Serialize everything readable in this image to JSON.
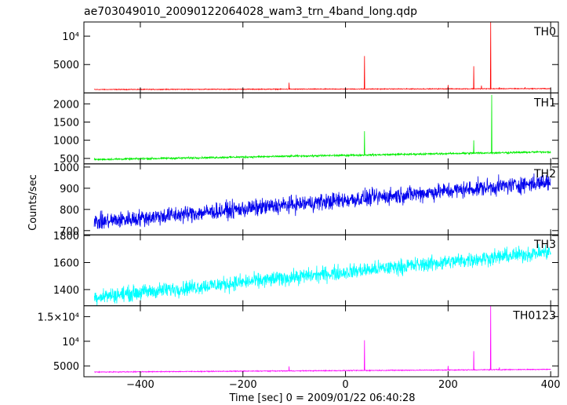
{
  "chart_data": {
    "type": "line",
    "title": "ae703049010_20090122064028_wam3_trn_4band_long.qdp",
    "xlabel": "Time [sec] 0 = 2009/01/22 06:40:28",
    "ylabel": "Counts/sec",
    "xlim": [
      -510,
      415
    ],
    "x_ticks": [
      -400,
      -200,
      0,
      200,
      400
    ],
    "x_tick_labels": [
      "−400",
      "−200",
      "0",
      "200",
      "400"
    ],
    "grid": false,
    "panels": [
      {
        "name": "TH0",
        "color": "#ff0000",
        "ylim": [
          0,
          12500
        ],
        "ticks": [
          5000,
          10000
        ],
        "tick_labels": [
          "5000",
          "10⁴"
        ],
        "baseline": {
          "x": [
            -490,
            400
          ],
          "y": [
            600,
            760
          ]
        },
        "noise": 45,
        "spikes": [
          [
            -110,
            1800
          ],
          [
            37,
            6500
          ],
          [
            200,
            1400
          ],
          [
            250,
            4700
          ],
          [
            265,
            1300
          ],
          [
            283,
            12500
          ],
          [
            300,
            1000
          ],
          [
            330,
            900
          ],
          [
            350,
            1000
          ],
          [
            390,
            700
          ]
        ]
      },
      {
        "name": "TH1",
        "color": "#00ee00",
        "ylim": [
          350,
          2300
        ],
        "ticks": [
          500,
          1000,
          1500,
          2000
        ],
        "tick_labels": [
          "500",
          "1000",
          "1500",
          "2000"
        ],
        "baseline": {
          "x": [
            -490,
            400
          ],
          "y": [
            470,
            680
          ]
        },
        "noise": 18,
        "spikes": [
          [
            37,
            1250
          ],
          [
            250,
            1000
          ],
          [
            285,
            2250
          ]
        ]
      },
      {
        "name": "TH2",
        "color": "#0000ee",
        "ylim": [
          680,
          1015
        ],
        "ticks": [
          700,
          800,
          900,
          1000
        ],
        "tick_labels": [
          "700",
          "800",
          "900",
          "1000"
        ],
        "baseline": {
          "x": [
            -490,
            400
          ],
          "y": [
            740,
            930
          ]
        },
        "noise": 28,
        "spikes": []
      },
      {
        "name": "TH3",
        "color": "#00ffff",
        "ylim": [
          1280,
          1805
        ],
        "ticks": [
          1400,
          1600,
          1800
        ],
        "tick_labels": [
          "1400",
          "1600",
          "1800"
        ],
        "baseline": {
          "x": [
            -490,
            400
          ],
          "y": [
            1345,
            1680
          ]
        },
        "noise": 40,
        "spikes": []
      },
      {
        "name": "TH0123",
        "color": "#ff00ff",
        "ylim": [
          2800,
          17200
        ],
        "ticks": [
          5000,
          10000,
          15000
        ],
        "tick_labels": [
          "5000",
          "10⁴",
          "1.5×10⁴"
        ],
        "baseline": {
          "x": [
            -490,
            400
          ],
          "y": [
            3750,
            4300
          ]
        },
        "noise": 60,
        "spikes": [
          [
            -110,
            4900
          ],
          [
            37,
            10200
          ],
          [
            200,
            5000
          ],
          [
            250,
            8000
          ],
          [
            283,
            17200
          ],
          [
            300,
            4700
          ]
        ]
      }
    ]
  }
}
